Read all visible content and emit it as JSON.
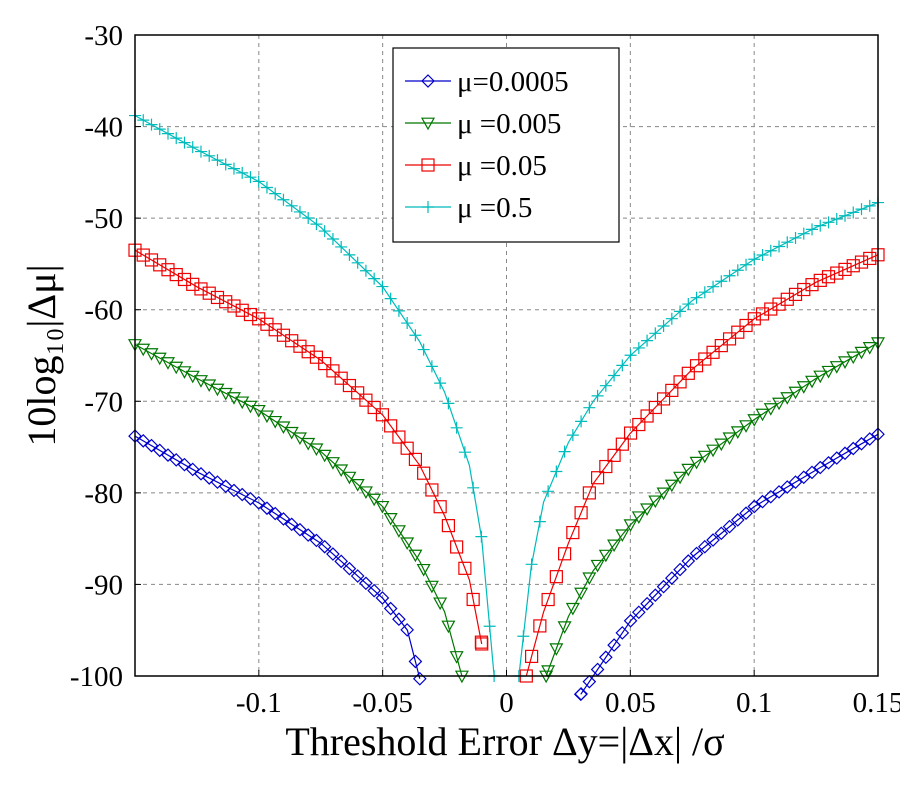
{
  "chart_data": {
    "type": "line",
    "title": "",
    "xlabel": "Threshold Error Δy=|Δx| /σ",
    "ylabel": "10log₁₀|Δμ|",
    "xlim": [
      -0.15,
      0.15
    ],
    "ylim": [
      -100,
      -30
    ],
    "x_ticks": [
      -0.1,
      -0.05,
      0,
      0.05,
      0.1,
      0.15
    ],
    "x_tick_labels": [
      "-0.1",
      "-0.05",
      "0",
      "0.05",
      "0.1",
      "0.15"
    ],
    "y_ticks": [
      -30,
      -40,
      -50,
      -60,
      -70,
      -80,
      -90,
      -100
    ],
    "y_tick_labels": [
      "-30",
      "-40",
      "-50",
      "-60",
      "-70",
      "-80",
      "-90",
      "-100"
    ],
    "grid": true,
    "legend_position": "top-center",
    "series": [
      {
        "name": "μ=0.0005",
        "color": "#0000cc",
        "marker": "diamond",
        "left": [
          [
            -0.15,
            -73.8
          ],
          [
            -0.125,
            -77.7
          ],
          [
            -0.1,
            -81.1
          ],
          [
            -0.075,
            -85.5
          ],
          [
            -0.05,
            -91.5
          ],
          [
            -0.04,
            -95.0
          ],
          [
            -0.035,
            -100.3
          ]
        ],
        "right": [
          [
            0.03,
            -102.0
          ],
          [
            0.035,
            -100.0
          ],
          [
            0.05,
            -94.0
          ],
          [
            0.075,
            -87.0
          ],
          [
            0.1,
            -81.5
          ],
          [
            0.125,
            -77.5
          ],
          [
            0.15,
            -73.6
          ]
        ]
      },
      {
        "name": "μ =0.005",
        "color": "#007700",
        "marker": "triangle-down",
        "left": [
          [
            -0.15,
            -63.8
          ],
          [
            -0.125,
            -67.5
          ],
          [
            -0.1,
            -71.0
          ],
          [
            -0.075,
            -75.5
          ],
          [
            -0.05,
            -81.5
          ],
          [
            -0.035,
            -87.5
          ],
          [
            -0.025,
            -93.0
          ],
          [
            -0.018,
            -100.0
          ]
        ],
        "right": [
          [
            0.016,
            -100.0
          ],
          [
            0.025,
            -93.5
          ],
          [
            0.035,
            -88.5
          ],
          [
            0.05,
            -83.5
          ],
          [
            0.075,
            -77.0
          ],
          [
            0.1,
            -72.0
          ],
          [
            0.125,
            -67.5
          ],
          [
            0.15,
            -63.6
          ]
        ]
      },
      {
        "name": "μ =0.05",
        "color": "#ee0000",
        "marker": "square",
        "left": [
          [
            -0.15,
            -53.5
          ],
          [
            -0.125,
            -57.5
          ],
          [
            -0.1,
            -61.0
          ],
          [
            -0.075,
            -65.5
          ],
          [
            -0.05,
            -71.5
          ],
          [
            -0.035,
            -77.0
          ],
          [
            -0.025,
            -82.5
          ],
          [
            -0.015,
            -89.5
          ],
          [
            -0.01,
            -96.5
          ]
        ],
        "right": [
          [
            0.008,
            -100.0
          ],
          [
            0.015,
            -93.0
          ],
          [
            0.025,
            -85.5
          ],
          [
            0.035,
            -79.0
          ],
          [
            0.05,
            -73.5
          ],
          [
            0.075,
            -66.5
          ],
          [
            0.1,
            -61.0
          ],
          [
            0.125,
            -57.0
          ],
          [
            0.15,
            -54.0
          ]
        ]
      },
      {
        "name": "μ =0.5",
        "color": "#00bbbb",
        "marker": "plus",
        "left": [
          [
            -0.15,
            -38.8
          ],
          [
            -0.125,
            -42.5
          ],
          [
            -0.1,
            -46.0
          ],
          [
            -0.075,
            -51.0
          ],
          [
            -0.05,
            -57.5
          ],
          [
            -0.035,
            -63.5
          ],
          [
            -0.025,
            -69.0
          ],
          [
            -0.015,
            -77.0
          ],
          [
            -0.01,
            -85.0
          ],
          [
            -0.005,
            -100.0
          ]
        ],
        "right": [
          [
            0.005,
            -100.0
          ],
          [
            0.01,
            -88.0
          ],
          [
            0.015,
            -81.0
          ],
          [
            0.025,
            -74.5
          ],
          [
            0.035,
            -70.0
          ],
          [
            0.05,
            -65.0
          ],
          [
            0.075,
            -59.0
          ],
          [
            0.1,
            -54.5
          ],
          [
            0.125,
            -51.0
          ],
          [
            0.15,
            -48.3
          ]
        ]
      }
    ]
  }
}
